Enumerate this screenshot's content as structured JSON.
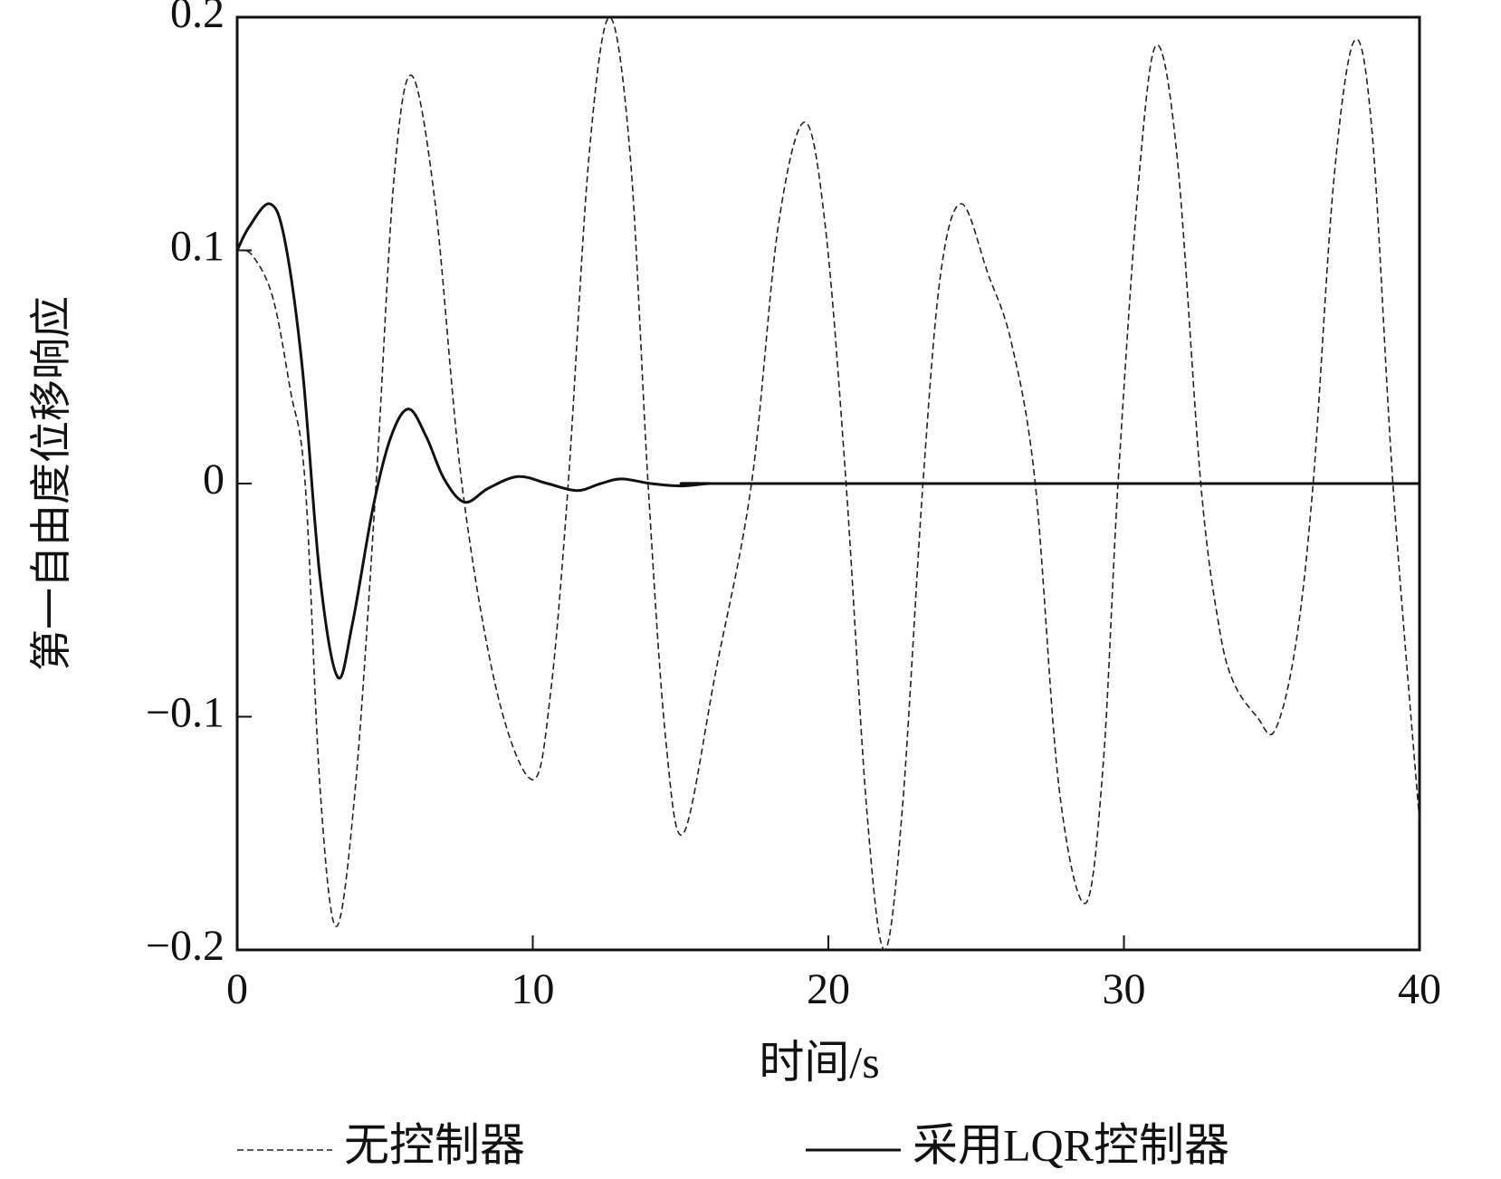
{
  "chart_data": {
    "type": "line",
    "x_label": "时间/s",
    "y_label": "第一自由度位移响应",
    "xlim": [
      0,
      40
    ],
    "xticks": [
      0,
      10,
      20,
      30,
      40
    ],
    "ylim": [
      -0.2,
      0.2
    ],
    "yticks": [
      {
        "value": -0.2,
        "label": "−0.2"
      },
      {
        "value": -0.1,
        "label": "−0.1"
      },
      0,
      0.1,
      0.2
    ],
    "legend": "bottom",
    "series": [
      {
        "name": "无控制器",
        "color": "#222222",
        "dash": "dashed",
        "x": [
          0,
          0.5,
          1.2,
          1.8,
          2.3,
          2.8,
          3.35,
          4.0,
          4.7,
          5.3,
          5.9,
          6.7,
          7.6,
          8.8,
          10.0,
          10.6,
          11.2,
          11.9,
          12.6,
          13.3,
          13.9,
          14.5,
          15.1,
          16.2,
          17.4,
          18.3,
          19.2,
          19.9,
          20.6,
          21.3,
          21.9,
          22.5,
          23.2,
          23.8,
          24.5,
          25.4,
          26.2,
          27.0,
          27.8,
          28.7,
          29.3,
          29.8,
          30.5,
          31.1,
          31.8,
          32.6,
          33.2,
          33.7,
          34.5,
          35.1,
          35.8,
          36.4,
          37.1,
          37.8,
          38.4,
          39.1,
          40
        ],
        "values": [
          0.1,
          0.098,
          0.08,
          0.04,
          0,
          -0.13,
          -0.19,
          -0.13,
          0,
          0.13,
          0.175,
          0.12,
          0,
          -0.09,
          -0.127,
          -0.09,
          0,
          0.14,
          0.2,
          0.14,
          0,
          -0.11,
          -0.15,
          -0.08,
          0,
          0.11,
          0.155,
          0.11,
          0,
          -0.14,
          -0.2,
          -0.14,
          0,
          0.09,
          0.12,
          0.09,
          0.06,
          0,
          -0.13,
          -0.18,
          -0.12,
          0,
          0.13,
          0.188,
          0.14,
          0,
          -0.06,
          -0.085,
          -0.1,
          -0.106,
          -0.07,
          0,
          0.13,
          0.19,
          0.15,
          0,
          -0.145
        ]
      },
      {
        "name": "采用LQR控制器",
        "color": "#111111",
        "dash": "solid",
        "x": [
          0,
          0.4,
          1.1,
          1.6,
          2.2,
          2.8,
          3.4,
          3.9,
          4.6,
          5.2,
          5.8,
          6.4,
          7.0,
          7.7,
          8.5,
          9.5,
          10.5,
          11.5,
          12.3,
          13,
          14,
          15,
          16,
          17,
          40
        ],
        "values": [
          0.1,
          0.11,
          0.12,
          0.105,
          0.05,
          -0.04,
          -0.083,
          -0.06,
          -0.01,
          0.02,
          0.032,
          0.02,
          0.002,
          -0.008,
          -0.002,
          0.003,
          0,
          -0.003,
          0,
          0.002,
          0,
          -0.001,
          0,
          0,
          0
        ]
      }
    ]
  }
}
